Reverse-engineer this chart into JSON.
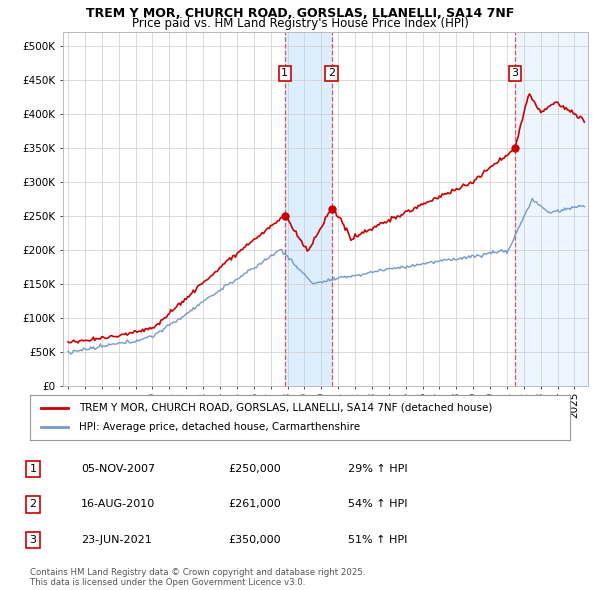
{
  "title": "TREM Y MOR, CHURCH ROAD, GORSLAS, LLANELLI, SA14 7NF",
  "subtitle": "Price paid vs. HM Land Registry's House Price Index (HPI)",
  "sale_prices": [
    250000,
    261000,
    350000
  ],
  "sale_labels": [
    "1",
    "2",
    "3"
  ],
  "sale_hpi_pct": [
    "29% ↑ HPI",
    "54% ↑ HPI",
    "51% ↑ HPI"
  ],
  "sale_dates_str": [
    "05-NOV-2007",
    "16-AUG-2010",
    "23-JUN-2021"
  ],
  "sale_year_floats": [
    2007.84,
    2010.62,
    2021.47
  ],
  "ylim": [
    0,
    520000
  ],
  "yticks": [
    0,
    50000,
    100000,
    150000,
    200000,
    250000,
    300000,
    350000,
    400000,
    450000,
    500000
  ],
  "legend_property": "TREM Y MOR, CHURCH ROAD, GORSLAS, LLANELLI, SA14 7NF (detached house)",
  "legend_hpi": "HPI: Average price, detached house, Carmarthenshire",
  "footnote": "Contains HM Land Registry data © Crown copyright and database right 2025.\nThis data is licensed under the Open Government Licence v3.0.",
  "property_color": "#cc0000",
  "hpi_color": "#7799cc",
  "grid_color": "#cccccc",
  "sale_box_color": "#cc0000",
  "shade_color": "#ddeeff",
  "xlim_left": 1994.7,
  "xlim_right": 2025.8
}
